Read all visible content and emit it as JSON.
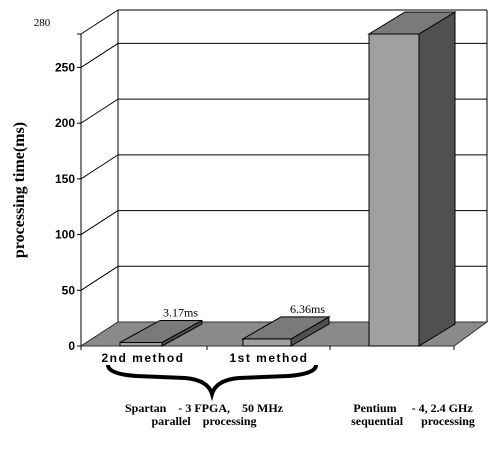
{
  "chart_data": {
    "type": "bar",
    "style": "3d",
    "title": "",
    "xlabel": "",
    "ylabel": "processing   time(ms)",
    "ylim": [
      0,
      280
    ],
    "yticks": [
      0,
      50,
      100,
      150,
      200,
      250,
      280
    ],
    "grid": true,
    "legend": "none",
    "categories": [
      "2nd method",
      "1st method",
      ""
    ],
    "values": [
      3.17,
      6.36,
      280
    ],
    "data_labels": [
      "3.17ms",
      "6.36ms",
      ""
    ],
    "group_labels": [
      {
        "line1": "Spartan    - 3 FPGA,    50 MHz",
        "line2": "parallel    processing"
      },
      {
        "line1": "Pentium     - 4, 2.4 GHz",
        "line2": "sequential      processing"
      }
    ],
    "colors": {
      "bar_front": "#a0a0a0",
      "bar_side": "#505050",
      "bar_top": "#7a7a7a",
      "floor": "#8a8a8a",
      "grid": "#000000"
    }
  }
}
